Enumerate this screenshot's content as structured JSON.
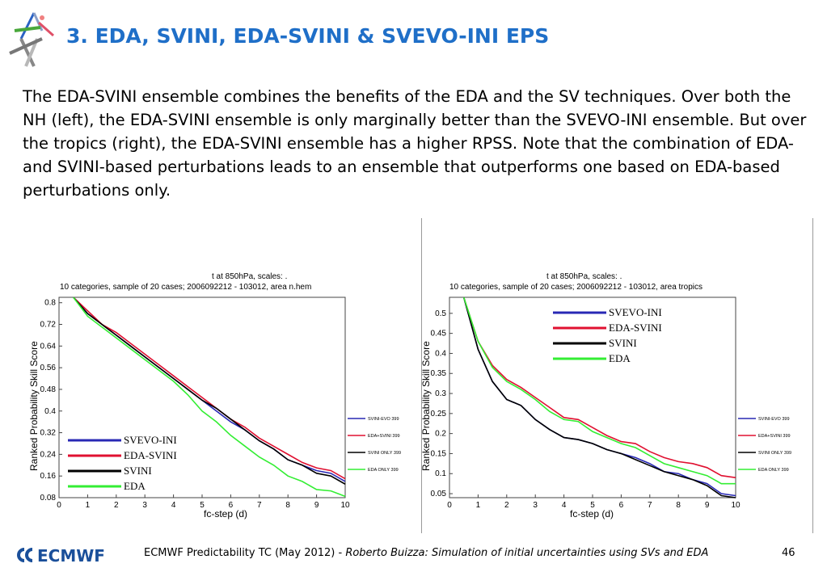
{
  "header": {
    "title": "3. EDA, SVINI, EDA-SVINI & SVEVO-INI EPS"
  },
  "body": {
    "paragraph": "The EDA-SVINI ensemble combines the benefits of the EDA and the SV techniques. Over both the NH (left), the EDA-SVINI ensemble is only marginally better than the SVEVO-INI ensemble. But over the tropics (right), the EDA-SVINI ensemble has a higher RPSS. Note that the combination of EDA- and SVINI-based perturbations leads to an ensemble that outperforms one based on EDA-based perturbations only."
  },
  "footer": {
    "org": "ECMWF",
    "text": "ECMWF Predictability TC (May 2012) - ",
    "italic": "Roberto Buizza: Simulation of initial uncertainties using SVs and EDA",
    "page": "46"
  },
  "colors": {
    "title": "#1f6fc8",
    "svevo": "#2828b4",
    "edasvini": "#e01030",
    "svini": "#000000",
    "eda": "#22cc22"
  },
  "chart_data": [
    {
      "type": "line",
      "title": "t at 850hPa,   scales: .",
      "subtitle": "10 categories, sample of 20 cases; 2006092212 - 103012, area n.hem",
      "xlabel": "fc-step (d)",
      "ylabel": "Ranked Probability Skill Score",
      "xlim": [
        0,
        10
      ],
      "ylim": [
        0.08,
        0.82
      ],
      "x_ticks": [
        "0",
        "1",
        "2",
        "3",
        "4",
        "5",
        "6",
        "7",
        "8",
        "9",
        "10"
      ],
      "y_ticks": [
        "0.08",
        "0.16",
        "0.24",
        "0.32",
        "0.4",
        "0.48",
        "0.56",
        "0.64",
        "0.72",
        "0.8"
      ],
      "x": [
        0.5,
        1,
        1.5,
        2,
        2.5,
        3,
        3.5,
        4,
        4.5,
        5,
        5.5,
        6,
        6.5,
        7,
        7.5,
        8,
        8.5,
        9,
        9.5,
        10
      ],
      "series": [
        {
          "name": "SVINI-EVO 399",
          "legend": "SVEVO-INI",
          "color": "#2828b4",
          "values": [
            0.82,
            0.76,
            0.72,
            0.68,
            0.64,
            0.6,
            0.56,
            0.52,
            0.48,
            0.44,
            0.4,
            0.36,
            0.33,
            0.29,
            0.26,
            0.22,
            0.2,
            0.18,
            0.17,
            0.14
          ]
        },
        {
          "name": "EDA+SVINI 399",
          "legend": "EDA-SVINI",
          "color": "#e01030",
          "values": [
            0.82,
            0.77,
            0.72,
            0.69,
            0.65,
            0.61,
            0.57,
            0.53,
            0.49,
            0.45,
            0.41,
            0.37,
            0.34,
            0.3,
            0.27,
            0.24,
            0.21,
            0.19,
            0.18,
            0.15
          ]
        },
        {
          "name": "SVINI ONLY 399",
          "legend": "SVINI",
          "color": "#000000",
          "values": [
            0.82,
            0.76,
            0.72,
            0.68,
            0.64,
            0.6,
            0.56,
            0.52,
            0.48,
            0.44,
            0.41,
            0.37,
            0.33,
            0.29,
            0.26,
            0.22,
            0.2,
            0.17,
            0.16,
            0.13
          ]
        },
        {
          "name": "EDA ONLY 399",
          "legend": "EDA",
          "color": "#33ee33",
          "values": [
            0.82,
            0.75,
            0.71,
            0.67,
            0.63,
            0.59,
            0.55,
            0.51,
            0.46,
            0.4,
            0.36,
            0.31,
            0.27,
            0.23,
            0.2,
            0.16,
            0.14,
            0.11,
            0.105,
            0.085
          ]
        }
      ]
    },
    {
      "type": "line",
      "title": "t at 850hPa,   scales: .",
      "subtitle": "10 categories, sample of 20 cases; 2006092212 - 103012, area tropics",
      "xlabel": "fc-step (d)",
      "ylabel": "Ranked Probability Skill Score",
      "xlim": [
        0,
        10
      ],
      "ylim": [
        0.04,
        0.54
      ],
      "x_ticks": [
        "0",
        "1",
        "2",
        "3",
        "4",
        "5",
        "6",
        "7",
        "8",
        "9",
        "10"
      ],
      "y_ticks": [
        "0.05",
        "0.1",
        "0.15",
        "0.2",
        "0.25",
        "0.3",
        "0.35",
        "0.4",
        "0.45",
        "0.5"
      ],
      "x": [
        0.5,
        1,
        1.5,
        2,
        2.5,
        3,
        3.5,
        4,
        4.5,
        5,
        5.5,
        6,
        6.5,
        7,
        7.5,
        8,
        8.5,
        9,
        9.5,
        10
      ],
      "series": [
        {
          "name": "SVINI-EVO 399",
          "legend": "SVEVO-INI",
          "color": "#2828b4",
          "values": [
            0.54,
            0.41,
            0.33,
            0.285,
            0.27,
            0.235,
            0.21,
            0.19,
            0.185,
            0.175,
            0.16,
            0.15,
            0.14,
            0.125,
            0.105,
            0.1,
            0.085,
            0.075,
            0.05,
            0.045
          ]
        },
        {
          "name": "EDA+SVINI 399",
          "legend": "EDA-SVINI",
          "color": "#e01030",
          "values": [
            0.54,
            0.43,
            0.37,
            0.335,
            0.315,
            0.29,
            0.265,
            0.24,
            0.235,
            0.215,
            0.195,
            0.18,
            0.175,
            0.155,
            0.14,
            0.13,
            0.125,
            0.115,
            0.095,
            0.09
          ]
        },
        {
          "name": "SVINI ONLY 399",
          "legend": "SVINI",
          "color": "#000000",
          "values": [
            0.54,
            0.41,
            0.33,
            0.285,
            0.27,
            0.235,
            0.21,
            0.19,
            0.185,
            0.175,
            0.16,
            0.15,
            0.135,
            0.12,
            0.105,
            0.095,
            0.085,
            0.07,
            0.045,
            0.04
          ]
        },
        {
          "name": "EDA ONLY 399",
          "legend": "EDA",
          "color": "#33ee33",
          "values": [
            0.54,
            0.43,
            0.365,
            0.33,
            0.31,
            0.285,
            0.255,
            0.235,
            0.23,
            0.205,
            0.19,
            0.175,
            0.165,
            0.145,
            0.125,
            0.115,
            0.105,
            0.095,
            0.075,
            0.075
          ]
        }
      ]
    }
  ]
}
